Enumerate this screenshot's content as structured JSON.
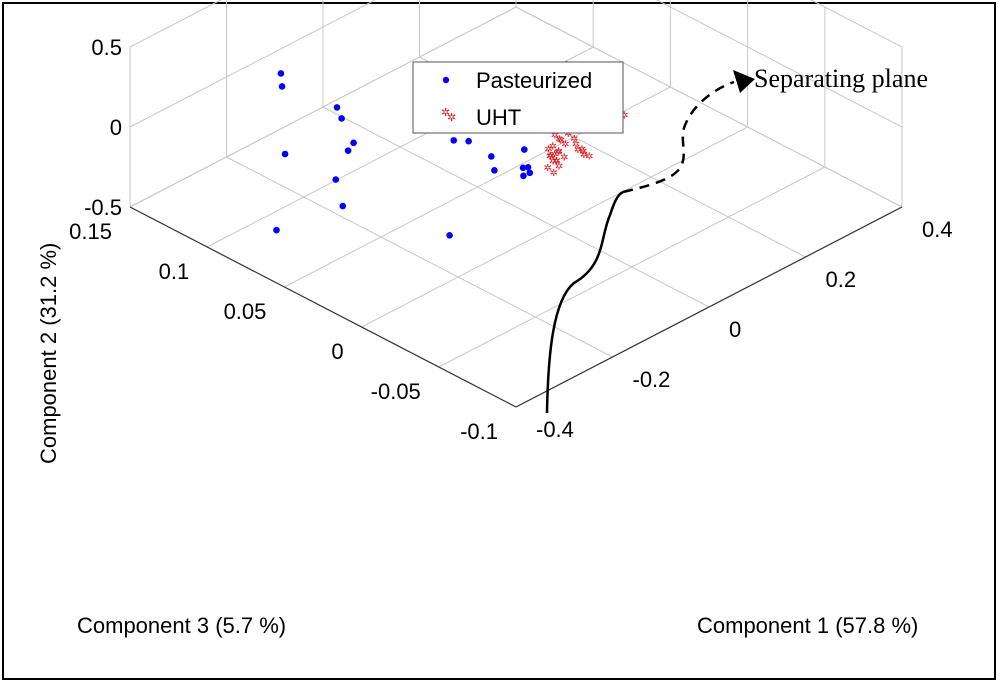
{
  "chart_data": {
    "type": "scatter3d",
    "title": "",
    "axes": {
      "x": {
        "label": "Component 1 (57.8 %)",
        "range": [
          -0.4,
          0.4
        ],
        "ticks": [
          -0.4,
          -0.2,
          0,
          0.2,
          0.4
        ],
        "tick_labels": [
          "-0.4",
          "-0.2",
          "0",
          "0.2",
          "0.4"
        ]
      },
      "y": {
        "label": "Component 3 (5.7  %)",
        "range": [
          -0.1,
          0.15
        ],
        "ticks": [
          -0.1,
          -0.05,
          0,
          0.05,
          0.1,
          0.15
        ],
        "tick_labels": [
          "-0.1",
          "-0.05",
          "0",
          "0.05",
          "0.1",
          "0.15"
        ]
      },
      "z": {
        "label": "Component 2 (31.2 %)",
        "range": [
          -0.5,
          0.5
        ],
        "ticks": [
          -0.5,
          0,
          0.5
        ],
        "tick_labels": [
          "-0.5",
          "0",
          "0.5"
        ]
      }
    },
    "grid": true,
    "legend": {
      "position": "top-center",
      "entries": [
        "Pasteurized",
        "UHT"
      ]
    },
    "annotation": "Separating plane",
    "series": [
      {
        "name": "Pasteurized",
        "color": "#0000ff",
        "marker": "dot",
        "points": [
          [
            -0.212,
            0.111,
            0.236
          ],
          [
            -0.151,
            0.083,
            -0.153
          ],
          [
            -0.147,
            0.092,
            -0.052
          ],
          [
            -0.168,
            0.124,
            0.021
          ],
          [
            -0.147,
            0.095,
            0.002
          ],
          [
            -0.213,
            0.108,
            -0.251
          ],
          [
            -0.236,
            0.068,
            -0.175
          ],
          [
            -0.156,
            0.085,
            -0.204
          ],
          [
            -0.199,
            0.075,
            -0.433
          ],
          [
            -0.176,
            0.013,
            -0.342
          ],
          [
            -0.081,
            0.04,
            -0.032
          ],
          [
            -0.063,
            0.036,
            -0.045
          ],
          [
            -0.064,
            0.021,
            -0.064
          ],
          [
            -0.08,
            0.014,
            -0.091
          ],
          [
            -0.043,
            0.007,
            -0.098
          ],
          [
            -0.045,
            0.002,
            -0.101
          ],
          [
            -0.055,
            0.003,
            -0.109
          ],
          [
            -0.034,
            0.009,
            -0.008
          ],
          [
            -0.039,
            0.005,
            -0.091
          ],
          [
            -0.282,
            0.092,
            -0.539
          ]
        ]
      },
      {
        "name": "UHT",
        "color": "#e41a1c",
        "marker": "star",
        "points": [
          [
            0.127,
            0.03,
            0.139
          ],
          [
            0.142,
            0.026,
            0.128
          ],
          [
            0.099,
            0.029,
            0.032
          ],
          [
            0.081,
            0.012,
            0.044
          ],
          [
            0.198,
            0.027,
            0.026
          ],
          [
            0.061,
            0.025,
            -0.012
          ],
          [
            0.051,
            0.03,
            -0.034
          ],
          [
            0.093,
            0.025,
            -0.06
          ],
          [
            0.138,
            0.012,
            -0.094
          ],
          [
            0.029,
            0.007,
            -0.033
          ],
          [
            0.003,
            0.003,
            -0.061
          ],
          [
            0.156,
            0.016,
            -0.122
          ],
          [
            0.173,
            0.011,
            -0.122
          ],
          [
            0.063,
            0.009,
            -0.088
          ],
          [
            0.051,
            0.011,
            -0.113
          ],
          [
            0.034,
            0.01,
            -0.126
          ],
          [
            0.063,
            0.004,
            -0.127
          ],
          [
            0.039,
            0.008,
            -0.159
          ],
          [
            0.006,
            0.003,
            -0.108
          ],
          [
            -0.005,
            0.001,
            -0.154
          ],
          [
            0.067,
            0.004,
            -0.167
          ],
          [
            0.075,
            0.003,
            -0.186
          ],
          [
            0.004,
            0.002,
            -0.096
          ],
          [
            -0.007,
            -0.003,
            -0.091
          ]
        ]
      }
    ]
  }
}
